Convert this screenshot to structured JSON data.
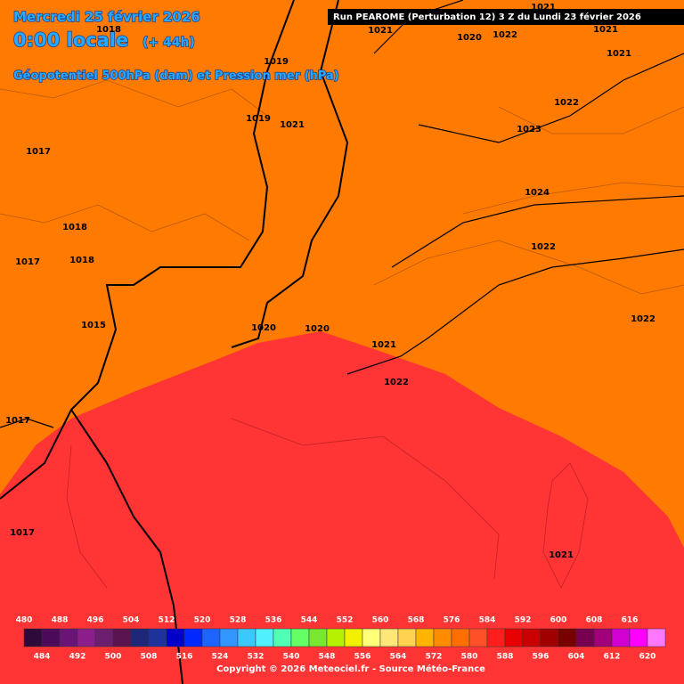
{
  "header": {
    "date": "Mercredi 25 février 2026",
    "time": "0:00 locale",
    "lead": "(+ 44h)",
    "field": "Géopotentiel 500hPa (dam) et Pression mer (hPa)",
    "run": "Run PEAROME (Perturbation 12) 3 Z du Lundi 23 février 2026"
  },
  "isobars": [
    1021,
    1020,
    1022,
    1021,
    1021,
    1021,
    1018,
    1019,
    1022,
    1019,
    1021,
    1023,
    1017,
    1024,
    1018,
    1017,
    1018,
    1022,
    1015,
    1020,
    1020,
    1022,
    1021,
    1022,
    1017,
    1017,
    1021
  ],
  "legend": {
    "values": [
      480,
      484,
      488,
      492,
      496,
      500,
      504,
      508,
      512,
      516,
      520,
      524,
      528,
      532,
      536,
      540,
      544,
      548,
      552,
      556,
      560,
      564,
      568,
      572,
      576,
      580,
      584,
      588,
      592,
      596,
      600,
      604,
      608,
      612,
      616,
      620
    ],
    "colors": [
      "#2d0a3a",
      "#4b0a5a",
      "#6a1478",
      "#8c1e8c",
      "#6e1e6e",
      "#5a1450",
      "#1e2878",
      "#1e329b",
      "#0000c8",
      "#0028ff",
      "#1e64ff",
      "#3296ff",
      "#3cc8ff",
      "#50f0ff",
      "#50ffb4",
      "#64ff64",
      "#78e632",
      "#b4f000",
      "#f0f000",
      "#ffff78",
      "#ffe678",
      "#ffd250",
      "#ffb400",
      "#ff8c00",
      "#ff6e00",
      "#ff5028",
      "#ff1e1e",
      "#e60000",
      "#c80000",
      "#a00000",
      "#780000",
      "#780050",
      "#a0007a",
      "#d200d2",
      "#ff00ff",
      "#ff78ff"
    ]
  },
  "footer": {
    "copyright": "Copyright © 2026 Meteociel.fr - Source Météo-France"
  }
}
